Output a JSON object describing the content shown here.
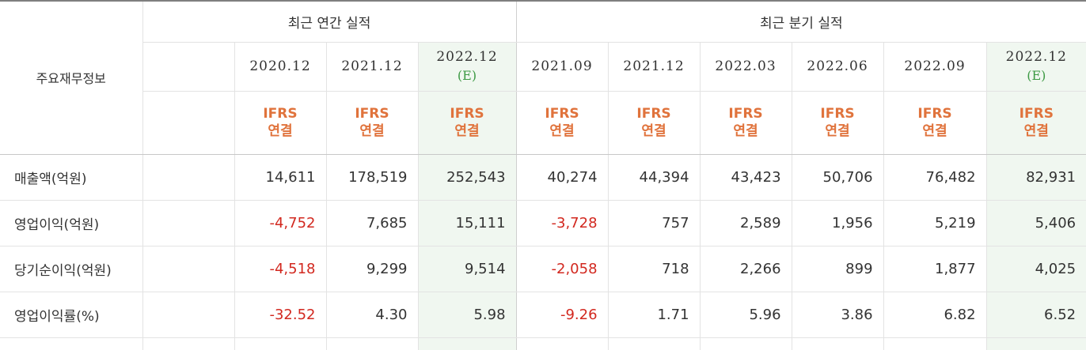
{
  "header": {
    "row_title": "주요재무정보",
    "annual_group": "최근 연간 실적",
    "quarterly_group": "최근 분기 실적"
  },
  "columns": [
    {
      "date": "2020.12",
      "est": "",
      "std1": "IFRS",
      "std2": "연결",
      "highlight": false
    },
    {
      "date": "2021.12",
      "est": "",
      "std1": "IFRS",
      "std2": "연결",
      "highlight": false
    },
    {
      "date": "2022.12",
      "est": "(E)",
      "std1": "IFRS",
      "std2": "연결",
      "highlight": true
    },
    {
      "date": "2021.09",
      "est": "",
      "std1": "IFRS",
      "std2": "연결",
      "highlight": false
    },
    {
      "date": "2021.12",
      "est": "",
      "std1": "IFRS",
      "std2": "연결",
      "highlight": false
    },
    {
      "date": "2022.03",
      "est": "",
      "std1": "IFRS",
      "std2": "연결",
      "highlight": false
    },
    {
      "date": "2022.06",
      "est": "",
      "std1": "IFRS",
      "std2": "연결",
      "highlight": false
    },
    {
      "date": "2022.09",
      "est": "",
      "std1": "IFRS",
      "std2": "연결",
      "highlight": false
    },
    {
      "date": "2022.12",
      "est": "(E)",
      "std1": "IFRS",
      "std2": "연결",
      "highlight": true
    }
  ],
  "rows": [
    {
      "label": "매출액(억원)",
      "values": [
        "14,611",
        "178,519",
        "252,543",
        "40,274",
        "44,394",
        "43,423",
        "50,706",
        "76,482",
        "82,931"
      ]
    },
    {
      "label": "영업이익(억원)",
      "values": [
        "-4,752",
        "7,685",
        "15,111",
        "-3,728",
        "757",
        "2,589",
        "1,956",
        "5,219",
        "5,406"
      ]
    },
    {
      "label": "당기순이익(억원)",
      "values": [
        "-4,518",
        "9,299",
        "9,514",
        "-2,058",
        "718",
        "2,266",
        "899",
        "1,877",
        "4,025"
      ]
    },
    {
      "label": "영업이익률(%)",
      "values": [
        "-32.52",
        "4.30",
        "5.98",
        "-9.26",
        "1.71",
        "5.96",
        "3.86",
        "6.82",
        "6.52"
      ]
    }
  ],
  "colors": {
    "negative": "#d2281f",
    "standard": "#e0733c",
    "estimate": "#3e9a45",
    "highlight_bg": "#f0f7f0"
  }
}
